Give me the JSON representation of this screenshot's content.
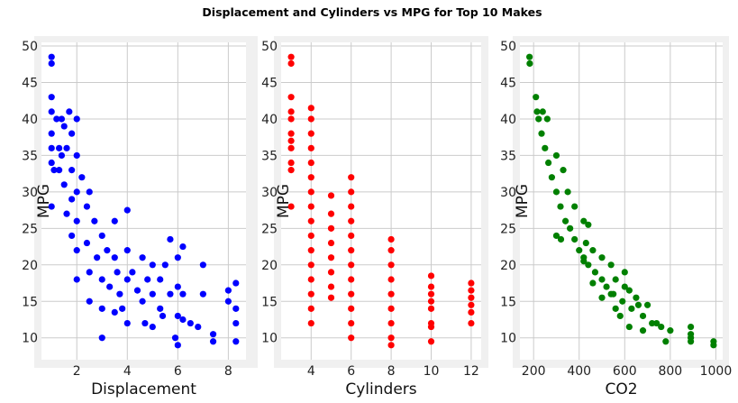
{
  "title": "Displacement and Cylinders vs MPG for Top 10 Makes",
  "colors": {
    "panel_bg": "#f0f0f0",
    "plot_bg": "#ffffff",
    "grid": "#cbcbcb"
  },
  "chart_data": [
    {
      "type": "scatter",
      "xlabel": "Displacement",
      "ylabel": "MPG",
      "color": "#0000ff",
      "xlim": [
        0.6,
        8.7
      ],
      "ylim": [
        7,
        50.5
      ],
      "xticks": [
        2,
        4,
        6,
        8
      ],
      "yticks": [
        10,
        15,
        20,
        25,
        30,
        35,
        40,
        45,
        50
      ],
      "grid": true,
      "points": [
        [
          1.0,
          48.5
        ],
        [
          1.0,
          47.6
        ],
        [
          1.0,
          43.0
        ],
        [
          1.0,
          41.0
        ],
        [
          1.0,
          38.0
        ],
        [
          1.0,
          36.0
        ],
        [
          1.0,
          34.0
        ],
        [
          1.1,
          33.0
        ],
        [
          1.0,
          28.0
        ],
        [
          1.2,
          40.0
        ],
        [
          1.3,
          36.0
        ],
        [
          1.3,
          33.0
        ],
        [
          1.4,
          40.0
        ],
        [
          1.4,
          35.0
        ],
        [
          1.5,
          39.0
        ],
        [
          1.5,
          31.0
        ],
        [
          1.6,
          36.0
        ],
        [
          1.6,
          27.0
        ],
        [
          1.7,
          41.0
        ],
        [
          1.8,
          38.0
        ],
        [
          1.8,
          33.0
        ],
        [
          1.8,
          29.0
        ],
        [
          1.8,
          24.0
        ],
        [
          2.0,
          40.0
        ],
        [
          2.0,
          35.0
        ],
        [
          2.0,
          30.0
        ],
        [
          2.0,
          26.0
        ],
        [
          2.0,
          22.0
        ],
        [
          2.0,
          18.0
        ],
        [
          2.2,
          32.0
        ],
        [
          2.4,
          28.0
        ],
        [
          2.4,
          23.0
        ],
        [
          2.5,
          30.0
        ],
        [
          2.5,
          19.0
        ],
        [
          2.5,
          15.0
        ],
        [
          2.7,
          26.0
        ],
        [
          2.8,
          21.0
        ],
        [
          3.0,
          24.0
        ],
        [
          3.0,
          18.0
        ],
        [
          3.0,
          14.0
        ],
        [
          3.0,
          10.0
        ],
        [
          3.2,
          22.0
        ],
        [
          3.3,
          17.0
        ],
        [
          3.5,
          21.0
        ],
        [
          3.5,
          26.0
        ],
        [
          3.5,
          13.5
        ],
        [
          3.6,
          19.0
        ],
        [
          3.7,
          16.0
        ],
        [
          3.8,
          14.0
        ],
        [
          4.0,
          27.5
        ],
        [
          4.0,
          22.0
        ],
        [
          4.0,
          18.0
        ],
        [
          4.0,
          12.0
        ],
        [
          4.2,
          19.0
        ],
        [
          4.4,
          16.5
        ],
        [
          4.6,
          21.0
        ],
        [
          4.6,
          15.0
        ],
        [
          4.7,
          12.0
        ],
        [
          4.8,
          18.0
        ],
        [
          5.0,
          20.0
        ],
        [
          5.0,
          16.0
        ],
        [
          5.0,
          11.5
        ],
        [
          5.3,
          18.0
        ],
        [
          5.3,
          14.0
        ],
        [
          5.4,
          13.0
        ],
        [
          5.5,
          20.0
        ],
        [
          5.7,
          23.5
        ],
        [
          5.7,
          16.0
        ],
        [
          5.9,
          10.0
        ],
        [
          6.0,
          21.0
        ],
        [
          6.0,
          17.0
        ],
        [
          6.0,
          13.0
        ],
        [
          6.0,
          9.0
        ],
        [
          6.2,
          22.5
        ],
        [
          6.2,
          16.0
        ],
        [
          6.2,
          12.5
        ],
        [
          6.5,
          12.0
        ],
        [
          6.8,
          11.5
        ],
        [
          7.0,
          20.0
        ],
        [
          7.0,
          16.0
        ],
        [
          7.4,
          10.5
        ],
        [
          7.4,
          9.5
        ],
        [
          8.0,
          16.5
        ],
        [
          8.0,
          15.0
        ],
        [
          8.3,
          17.5
        ],
        [
          8.3,
          14.0
        ],
        [
          8.3,
          12.0
        ],
        [
          8.3,
          9.5
        ]
      ]
    },
    {
      "type": "scatter",
      "xlabel": "Cylinders",
      "ylabel": "MPG",
      "color": "#ff0000",
      "xlim": [
        2.5,
        12.5
      ],
      "ylim": [
        7,
        50.5
      ],
      "xticks": [
        4,
        6,
        8,
        10,
        12
      ],
      "yticks": [
        10,
        15,
        20,
        25,
        30,
        35,
        40,
        45,
        50
      ],
      "grid": true,
      "points": [
        [
          3,
          48.5
        ],
        [
          3,
          47.6
        ],
        [
          3,
          43.0
        ],
        [
          3,
          41.0
        ],
        [
          3,
          40.0
        ],
        [
          3,
          38.0
        ],
        [
          3,
          37.0
        ],
        [
          3,
          36.0
        ],
        [
          3,
          34.0
        ],
        [
          3,
          33.0
        ],
        [
          3,
          28.0
        ],
        [
          4,
          41.5
        ],
        [
          4,
          40.0
        ],
        [
          4,
          38.0
        ],
        [
          4,
          36.0
        ],
        [
          4,
          34.0
        ],
        [
          4,
          32.0
        ],
        [
          4,
          30.0
        ],
        [
          4,
          28.0
        ],
        [
          4,
          26.0
        ],
        [
          4,
          24.0
        ],
        [
          4,
          22.0
        ],
        [
          4,
          20.0
        ],
        [
          4,
          18.0
        ],
        [
          4,
          16.0
        ],
        [
          4,
          14.0
        ],
        [
          4,
          12.0
        ],
        [
          5,
          29.5
        ],
        [
          5,
          27.0
        ],
        [
          5,
          25.0
        ],
        [
          5,
          23.0
        ],
        [
          5,
          21.0
        ],
        [
          5,
          19.0
        ],
        [
          5,
          17.0
        ],
        [
          5,
          15.5
        ],
        [
          6,
          32.0
        ],
        [
          6,
          30.0
        ],
        [
          6,
          28.0
        ],
        [
          6,
          26.0
        ],
        [
          6,
          24.0
        ],
        [
          6,
          22.0
        ],
        [
          6,
          20.0
        ],
        [
          6,
          18.0
        ],
        [
          6,
          16.0
        ],
        [
          6,
          14.0
        ],
        [
          6,
          12.0
        ],
        [
          6,
          10.0
        ],
        [
          8,
          23.5
        ],
        [
          8,
          22.0
        ],
        [
          8,
          20.0
        ],
        [
          8,
          18.0
        ],
        [
          8,
          16.0
        ],
        [
          8,
          14.0
        ],
        [
          8,
          12.0
        ],
        [
          8,
          10.0
        ],
        [
          8,
          9.0
        ],
        [
          10,
          18.5
        ],
        [
          10,
          17.0
        ],
        [
          10,
          16.0
        ],
        [
          10,
          15.0
        ],
        [
          10,
          14.0
        ],
        [
          10,
          12.0
        ],
        [
          10,
          11.5
        ],
        [
          10,
          9.5
        ],
        [
          12,
          17.5
        ],
        [
          12,
          16.5
        ],
        [
          12,
          15.5
        ],
        [
          12,
          14.5
        ],
        [
          12,
          13.5
        ],
        [
          12,
          12.0
        ]
      ]
    },
    {
      "type": "scatter",
      "xlabel": "CO2",
      "ylabel": "MPG",
      "color": "#008000",
      "xlim": [
        140,
        1030
      ],
      "ylim": [
        7,
        50.5
      ],
      "xticks": [
        200,
        400,
        600,
        800,
        1000
      ],
      "yticks": [
        10,
        15,
        20,
        25,
        30,
        35,
        40,
        45,
        50
      ],
      "grid": true,
      "points": [
        [
          182,
          48.5
        ],
        [
          183,
          47.6
        ],
        [
          210,
          43.0
        ],
        [
          215,
          41.0
        ],
        [
          222,
          40.0
        ],
        [
          235,
          38.0
        ],
        [
          250,
          36.0
        ],
        [
          265,
          34.0
        ],
        [
          280,
          32.0
        ],
        [
          300,
          30.0
        ],
        [
          318,
          28.0
        ],
        [
          340,
          26.0
        ],
        [
          360,
          25.0
        ],
        [
          380,
          23.5
        ],
        [
          400,
          22.0
        ],
        [
          420,
          21.0
        ],
        [
          440,
          20.0
        ],
        [
          470,
          19.0
        ],
        [
          500,
          18.0
        ],
        [
          520,
          17.0
        ],
        [
          550,
          16.0
        ],
        [
          590,
          15.0
        ],
        [
          630,
          14.0
        ],
        [
          680,
          13.0
        ],
        [
          740,
          12.0
        ],
        [
          800,
          11.0
        ],
        [
          890,
          10.0
        ],
        [
          990,
          9.0
        ],
        [
          240,
          41.0
        ],
        [
          260,
          40.0
        ],
        [
          300,
          35.0
        ],
        [
          330,
          33.0
        ],
        [
          350,
          30.0
        ],
        [
          380,
          28.0
        ],
        [
          420,
          26.0
        ],
        [
          440,
          25.5
        ],
        [
          300,
          24.0
        ],
        [
          320,
          23.5
        ],
        [
          430,
          23.0
        ],
        [
          460,
          22.0
        ],
        [
          500,
          21.0
        ],
        [
          540,
          20.0
        ],
        [
          560,
          18.0
        ],
        [
          600,
          19.0
        ],
        [
          620,
          16.5
        ],
        [
          650,
          15.5
        ],
        [
          700,
          14.5
        ],
        [
          720,
          12.0
        ],
        [
          760,
          11.5
        ],
        [
          890,
          11.5
        ],
        [
          890,
          10.5
        ],
        [
          890,
          9.5
        ],
        [
          990,
          9.5
        ],
        [
          780,
          9.5
        ],
        [
          500,
          15.5
        ],
        [
          560,
          14.0
        ],
        [
          580,
          13.0
        ],
        [
          620,
          11.5
        ],
        [
          680,
          11.0
        ],
        [
          420,
          20.5
        ],
        [
          460,
          17.5
        ],
        [
          540,
          16.0
        ],
        [
          600,
          17.0
        ],
        [
          660,
          14.5
        ]
      ]
    }
  ]
}
